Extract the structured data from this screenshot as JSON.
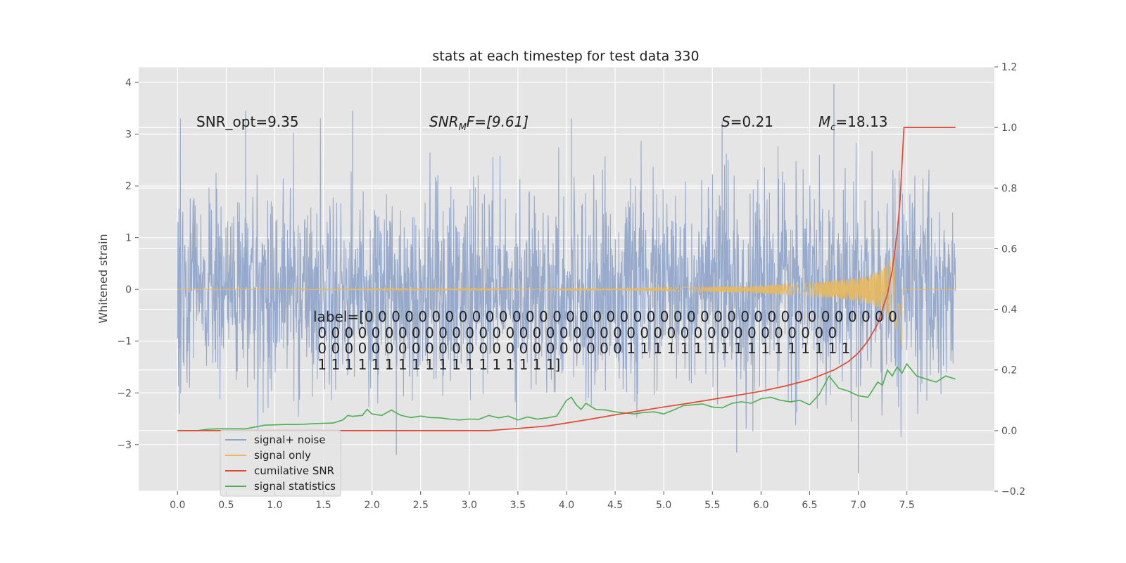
{
  "chart_data": {
    "type": "line",
    "title": "stats at each timestep for test data 330",
    "ylabel_left": "Whitened strain",
    "xlabel": "",
    "ylabel_right": "",
    "xlim": [
      -0.4,
      8.4
    ],
    "ylim_left": [
      -3.9,
      4.3
    ],
    "ylim_right": [
      -0.2,
      1.2
    ],
    "grid": true,
    "x_ticks": [
      "0.0",
      "0.5",
      "1.0",
      "1.5",
      "2.0",
      "2.5",
      "3.0",
      "3.5",
      "4.0",
      "4.5",
      "5.0",
      "5.5",
      "6.0",
      "6.5",
      "7.0",
      "7.5"
    ],
    "y_left_ticks": [
      "−3",
      "−2",
      "−1",
      "0",
      "1",
      "2",
      "3",
      "4"
    ],
    "y_right_ticks": [
      "−0.2",
      "0.0",
      "0.2",
      "0.4",
      "0.6",
      "0.8",
      "1.0",
      "1.2"
    ],
    "annotations": {
      "snr_opt": "SNR_opt=9.35",
      "snr_mf_main": "SNR",
      "snr_mf_sub": "M",
      "snr_mf_rest": "F=[9.61]",
      "s_main": "S",
      "s_rest": "=0.21",
      "mc_main": "M",
      "mc_sub": "c",
      "mc_rest": "=18.13"
    },
    "label_lines": [
      "label=[0 0 0 0 0 0 0 0 0 0 0 0 0 0 0 0 0 0 0 0 0 0 0 0 0 0 0 0 0 0 0 0 0 0 0 0 0 0 0 0",
      " 0 0 0 0 0 0 0 0 0 0 0 0 0 0 0 0 0 0 0 0 0 0 0 0 0 0 0 0 0 0 0 0 0 0 0 0 0 0 0",
      " 0 0 0 0 0 0 0 0 0 0 0 0 0 0 0 0 0 0 0 0 0 0 0 1 1 1 1 1 1 1 1 1 1 1 1 1 1 1 1 1",
      " 1 1 1 1 1 1 1 1 1 1 1 1 1 1 1 1 1 1]"
    ],
    "legend_placement": "lower-left",
    "series": [
      {
        "name": "signal+ noise",
        "axis": "left",
        "color": "#92a6c9",
        "description_values": {
          "x_range": [
            0.0,
            8.0
          ],
          "typical_amplitude": 1.0,
          "peaks": [
            {
              "x": 0.7,
              "y": 3.45
            },
            {
              "x": 1.8,
              "y": 3.45
            },
            {
              "x": 4.05,
              "y": 3.3
            },
            {
              "x": 5.6,
              "y": 3.25
            },
            {
              "x": 6.75,
              "y": 3.97
            },
            {
              "x": 7.0,
              "y": -3.55
            },
            {
              "x": 5.75,
              "y": -3.15
            },
            {
              "x": 2.25,
              "y": -3.2
            }
          ]
        }
      },
      {
        "name": "signal only",
        "axis": "left",
        "color": "#e8b95e",
        "envelope": {
          "x": [
            0.0,
            4.5,
            5.5,
            6.0,
            6.5,
            7.0,
            7.2,
            7.3,
            7.4,
            7.45
          ],
          "amp": [
            0.0,
            0.02,
            0.05,
            0.08,
            0.13,
            0.22,
            0.34,
            0.5,
            0.8,
            1.2
          ]
        }
      },
      {
        "name": "cumilative SNR",
        "axis": "right",
        "color": "#e24a33",
        "x": [
          0.0,
          3.2,
          3.5,
          3.8,
          4.0,
          4.25,
          4.5,
          4.75,
          5.0,
          5.25,
          5.5,
          5.75,
          6.0,
          6.25,
          6.5,
          6.75,
          6.9,
          7.0,
          7.1,
          7.2,
          7.3,
          7.35,
          7.4,
          7.43,
          7.45,
          7.47,
          8.0
        ],
        "values": [
          0.0,
          0.0,
          0.007,
          0.015,
          0.025,
          0.038,
          0.052,
          0.065,
          0.078,
          0.09,
          0.103,
          0.116,
          0.13,
          0.147,
          0.168,
          0.2,
          0.228,
          0.256,
          0.296,
          0.352,
          0.45,
          0.53,
          0.65,
          0.76,
          0.88,
          1.0,
          1.0
        ]
      },
      {
        "name": "signal statistics",
        "axis": "right",
        "color": "#4caf50",
        "x": [
          0.0,
          0.2,
          0.3,
          0.4,
          0.5,
          0.6,
          0.7,
          0.8,
          0.9,
          1.0,
          1.1,
          1.2,
          1.3,
          1.4,
          1.5,
          1.6,
          1.7,
          1.75,
          1.8,
          1.9,
          1.95,
          2.0,
          2.1,
          2.2,
          2.25,
          2.3,
          2.4,
          2.5,
          2.6,
          2.7,
          2.8,
          2.9,
          3.0,
          3.1,
          3.2,
          3.3,
          3.4,
          3.5,
          3.6,
          3.7,
          3.8,
          3.9,
          4.0,
          4.05,
          4.1,
          4.15,
          4.2,
          4.3,
          4.4,
          4.5,
          4.6,
          4.7,
          4.8,
          4.9,
          5.0,
          5.1,
          5.2,
          5.3,
          5.4,
          5.5,
          5.6,
          5.7,
          5.8,
          5.9,
          6.0,
          6.1,
          6.2,
          6.3,
          6.4,
          6.5,
          6.6,
          6.7,
          6.8,
          6.9,
          7.0,
          7.1,
          7.2,
          7.25,
          7.3,
          7.35,
          7.4,
          7.45,
          7.5,
          7.55,
          7.6,
          7.7,
          7.8,
          7.9,
          8.0
        ],
        "values": [
          0.0,
          0.0,
          0.004,
          0.006,
          0.006,
          0.006,
          0.006,
          0.012,
          0.018,
          0.019,
          0.02,
          0.02,
          0.021,
          0.023,
          0.024,
          0.025,
          0.035,
          0.05,
          0.047,
          0.05,
          0.07,
          0.055,
          0.05,
          0.068,
          0.058,
          0.05,
          0.043,
          0.048,
          0.043,
          0.042,
          0.038,
          0.035,
          0.038,
          0.037,
          0.05,
          0.042,
          0.048,
          0.035,
          0.045,
          0.038,
          0.042,
          0.048,
          0.1,
          0.11,
          0.085,
          0.07,
          0.09,
          0.07,
          0.068,
          0.062,
          0.058,
          0.055,
          0.06,
          0.062,
          0.055,
          0.068,
          0.082,
          0.085,
          0.088,
          0.078,
          0.075,
          0.09,
          0.095,
          0.09,
          0.105,
          0.11,
          0.1,
          0.095,
          0.1,
          0.085,
          0.12,
          0.18,
          0.14,
          0.13,
          0.115,
          0.11,
          0.16,
          0.15,
          0.2,
          0.18,
          0.21,
          0.19,
          0.22,
          0.2,
          0.18,
          0.17,
          0.16,
          0.18,
          0.17
        ]
      }
    ]
  },
  "legend": {
    "items": [
      {
        "label": "signal+ noise",
        "color": "#92a6c9"
      },
      {
        "label": "signal only",
        "color": "#e8b95e"
      },
      {
        "label": "cumilative SNR",
        "color": "#e24a33"
      },
      {
        "label": "signal statistics",
        "color": "#4caf50"
      }
    ]
  }
}
